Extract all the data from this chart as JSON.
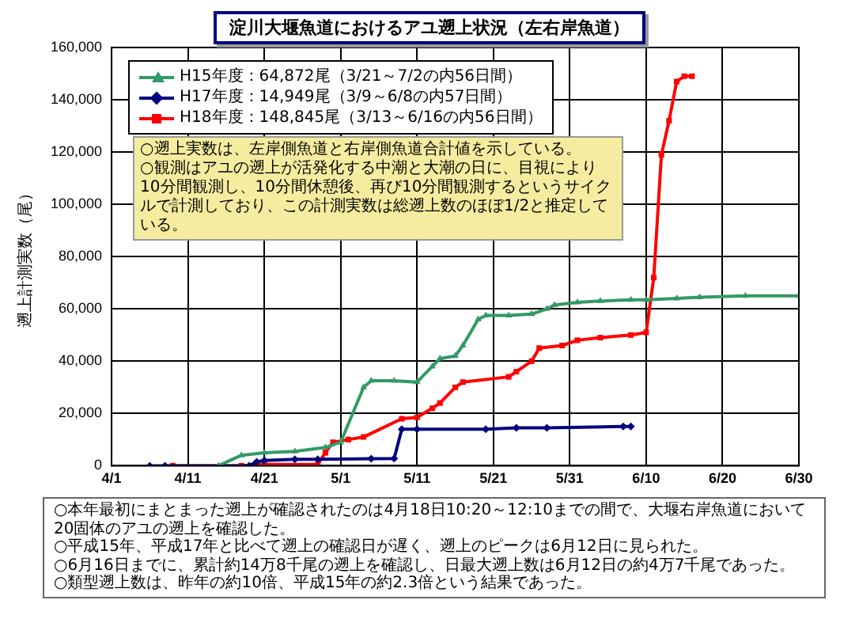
{
  "chart_data": {
    "type": "line",
    "title": "淀川大堰魚道におけるアユ遡上状況（左右岸魚道）",
    "ylabel": "遡上計測実数（尾）",
    "xlim": [
      "--04-01",
      "--06-30"
    ],
    "xticks": [
      {
        "value": "--04-01",
        "label": "4/1"
      },
      {
        "value": "--04-11",
        "label": "4/11"
      },
      {
        "value": "--04-21",
        "label": "4/21"
      },
      {
        "value": "--05-01",
        "label": "5/1"
      },
      {
        "value": "--05-11",
        "label": "5/11"
      },
      {
        "value": "--05-21",
        "label": "5/21"
      },
      {
        "value": "--05-31",
        "label": "5/31"
      },
      {
        "value": "--06-10",
        "label": "6/10"
      },
      {
        "value": "--06-20",
        "label": "6/20"
      },
      {
        "value": "--06-30",
        "label": "6/30"
      }
    ],
    "ylim": [
      0,
      160000
    ],
    "yticks": [
      0,
      {
        "value": 20000,
        "label": "20,000"
      },
      {
        "value": 40000,
        "label": "40,000"
      },
      {
        "value": 60000,
        "label": "60,000"
      },
      {
        "value": 80000,
        "label": "80,000"
      },
      {
        "value": 100000,
        "label": "100,000"
      },
      {
        "value": 120000,
        "label": "120,000"
      },
      {
        "value": 140000,
        "label": "140,000"
      },
      {
        "value": 160000,
        "label": "160,000"
      }
    ],
    "grid": true,
    "legend": "top left",
    "series": [
      {
        "name": "H15年度：64,872尾（3/21～7/2の内56日間）",
        "color": "#339966",
        "marker": "triangle",
        "x": [
          "--04-15",
          "--04-18",
          "--04-21",
          "--04-25",
          "--04-29",
          "--05-01",
          "--05-04",
          "--05-05",
          "--05-08",
          "--05-11",
          "--05-13",
          "--05-14",
          "--05-16",
          "--05-17",
          "--05-19",
          "--05-20",
          "--05-23",
          "--05-26",
          "--05-28",
          "--05-29",
          "--06-01",
          "--06-04",
          "--06-08",
          "--06-10",
          "--06-14",
          "--06-17",
          "--06-23",
          "--06-30"
        ],
        "values": [
          0,
          4000,
          5000,
          5500,
          7000,
          9000,
          30000,
          32500,
          32500,
          32000,
          38000,
          41000,
          42000,
          46000,
          56000,
          57500,
          57500,
          58000,
          60000,
          61500,
          62500,
          63000,
          63500,
          63500,
          64000,
          64500,
          65000,
          65000
        ]
      },
      {
        "name": "H17年度：14,949尾（3/9～6/8の内57日間）",
        "color": "#000080",
        "marker": "diamond",
        "x": [
          "--04-06",
          "--04-08",
          "--04-19",
          "--04-20",
          "--04-21",
          "--04-25",
          "--04-28",
          "--05-05",
          "--05-08",
          "--05-09",
          "--05-11",
          "--05-20",
          "--05-24",
          "--05-28",
          "--06-07",
          "--06-08"
        ],
        "values": [
          0,
          0,
          0,
          1500,
          2000,
          2500,
          2500,
          2700,
          2800,
          14000,
          14000,
          14000,
          14500,
          14500,
          15000,
          15000
        ]
      },
      {
        "name": "H18年度：148,845尾（3/13～6/16の内56日間）",
        "color": "#ff0000",
        "marker": "square",
        "x": [
          "--04-09",
          "--04-18",
          "--04-21",
          "--04-28",
          "--04-29",
          "--04-30",
          "--05-02",
          "--05-04",
          "--05-09",
          "--05-11",
          "--05-13",
          "--05-14",
          "--05-16",
          "--05-17",
          "--05-23",
          "--05-24",
          "--05-26",
          "--05-27",
          "--05-30",
          "--06-01",
          "--06-04",
          "--06-08",
          "--06-10",
          "--06-11",
          "--06-12",
          "--06-13",
          "--06-14",
          "--06-15",
          "--06-16"
        ],
        "values": [
          0,
          0,
          500,
          500,
          5000,
          9000,
          10000,
          11000,
          18000,
          18500,
          22000,
          24000,
          30000,
          32000,
          34000,
          36000,
          40000,
          45000,
          46000,
          48000,
          49000,
          50000,
          51000,
          72000,
          119000,
          132000,
          147000,
          149000,
          149000
        ]
      }
    ],
    "annotations": [
      "○遡上実数は、左岸側魚道と右岸側魚道合計値を示している。\n○観測はアユの遡上が活発化する中潮と大潮の日に、目視により10分間観測し、10分間休憩後、再び10分間観測するというサイクルで計測しており、この計測実数は総遡上数のほぼ1/2と推定している。",
      "○本年最初にまとまった遡上が確認されたのは4月18日10:20～12:10までの間で、大堰右岸魚道において20固体のアユの遡上を確認した。\n○平成15年、平成17年と比べて遡上の確認日が遅く、遡上のピークは6月12日に見られた。\n○6月16日までに、累計約14万8千尾の遡上を確認し、日最大遡上数は6月12日の約4万7千尾であった。\n○類型遡上数は、昨年の約10倍、平成15年の約2.3倍という結果であった。"
    ]
  }
}
